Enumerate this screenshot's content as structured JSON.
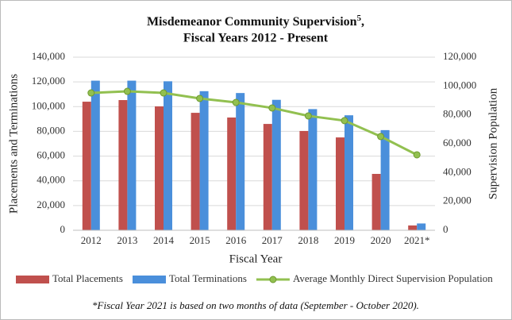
{
  "chart_data": {
    "type": "bar-line",
    "title": "Misdemeanor Community Supervision",
    "title_footnote": "5",
    "title_end": ",",
    "subtitle": "Fiscal Years 2012 - Present",
    "x_label": "Fiscal Year",
    "y_label": "Placements and Terminations",
    "y2_label": "Supervision Population",
    "footnote": "*Fiscal Year 2021 is based on two months of data (September - October 2020).",
    "categories": [
      "2012",
      "2013",
      "2014",
      "2015",
      "2016",
      "2017",
      "2018",
      "2019",
      "2020",
      "2021*"
    ],
    "series": [
      {
        "name": "Total Placements",
        "color": "#c0504d",
        "kind": "bar",
        "values": [
          104000,
          105300,
          100200,
          95000,
          91200,
          86000,
          80300,
          75100,
          45600,
          3900
        ]
      },
      {
        "name": "Total Terminations",
        "color": "#4a8fdb",
        "kind": "bar",
        "values": [
          121000,
          121000,
          120500,
          112500,
          111000,
          105500,
          98000,
          93000,
          81000,
          5500
        ]
      },
      {
        "name": "Average Monthly Direct Supervision Population",
        "color": "#92c050",
        "kind": "line",
        "axis": "y2",
        "values": [
          95200,
          96300,
          95200,
          91400,
          88600,
          84800,
          79300,
          76000,
          65000,
          52300
        ]
      }
    ],
    "ylim": [
      0,
      140000
    ],
    "yticks": [
      0,
      {
        "value": 20000,
        "label": "20,000"
      },
      {
        "value": 40000,
        "label": "40,000"
      },
      {
        "value": 60000,
        "label": "60,000"
      },
      {
        "value": 80000,
        "label": "80,000"
      },
      {
        "value": 100000,
        "label": "100,000"
      },
      {
        "value": 120000,
        "label": "120,000"
      },
      {
        "value": 140000,
        "label": "140,000"
      }
    ],
    "y2lim": [
      0,
      120000
    ],
    "y2ticks": [
      0,
      {
        "value": 20000,
        "label": "20,000"
      },
      {
        "value": 40000,
        "label": "40,000"
      },
      {
        "value": 60000,
        "label": "60,000"
      },
      {
        "value": 80000,
        "label": "80,000"
      },
      {
        "value": 100000,
        "label": "100,000"
      },
      {
        "value": 120000,
        "label": "120,000"
      }
    ],
    "grid": true,
    "legend": "bottom"
  }
}
